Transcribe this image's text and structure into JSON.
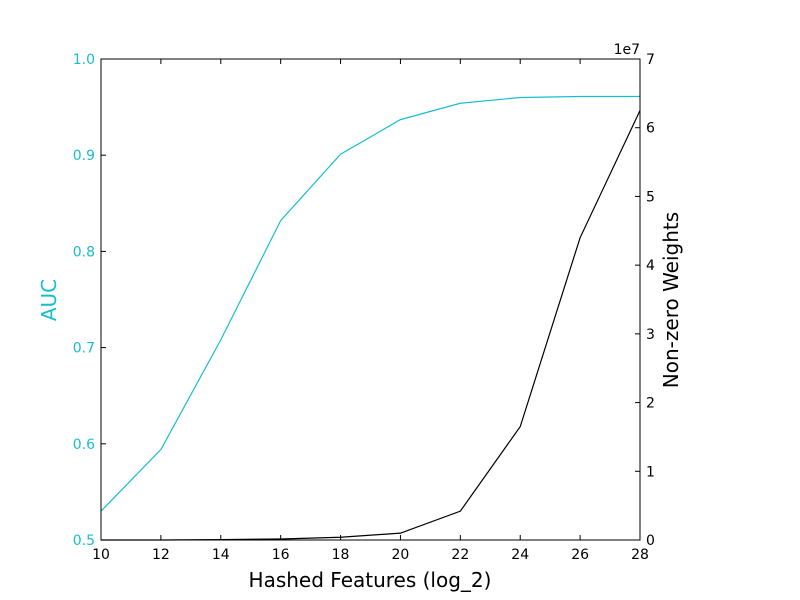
{
  "chart_data": {
    "type": "line",
    "xlabel": "Hashed Features (log_2)",
    "x_ticks": [
      "10",
      "12",
      "14",
      "16",
      "18",
      "20",
      "22",
      "24",
      "26",
      "28"
    ],
    "xlim": [
      10,
      28
    ],
    "left_axis": {
      "label": "AUC",
      "color": "#17becf",
      "ylim": [
        0.5,
        1.0
      ],
      "ticks": [
        "0.5",
        "0.6",
        "0.7",
        "0.8",
        "0.9",
        "1.0"
      ]
    },
    "right_axis": {
      "label": "Non-zero Weights",
      "color": "#000000",
      "ylim": [
        0,
        7
      ],
      "ticks": [
        "0",
        "1",
        "2",
        "3",
        "4",
        "5",
        "6",
        "7"
      ],
      "offset_label": "1e7"
    },
    "series": [
      {
        "axis": "left",
        "color": "#17becf",
        "x": [
          10,
          12,
          14,
          16,
          18,
          20,
          22,
          24,
          26,
          28
        ],
        "values": [
          0.53,
          0.594,
          0.708,
          0.832,
          0.901,
          0.937,
          0.954,
          0.96,
          0.961,
          0.961
        ]
      },
      {
        "axis": "right",
        "color": "#000000",
        "x": [
          10,
          12,
          14,
          16,
          18,
          20,
          22,
          24,
          26,
          28
        ],
        "values": [
          0.0,
          0.0,
          0.005,
          0.015,
          0.04,
          0.1,
          0.42,
          1.65,
          4.4,
          6.25
        ]
      }
    ]
  }
}
